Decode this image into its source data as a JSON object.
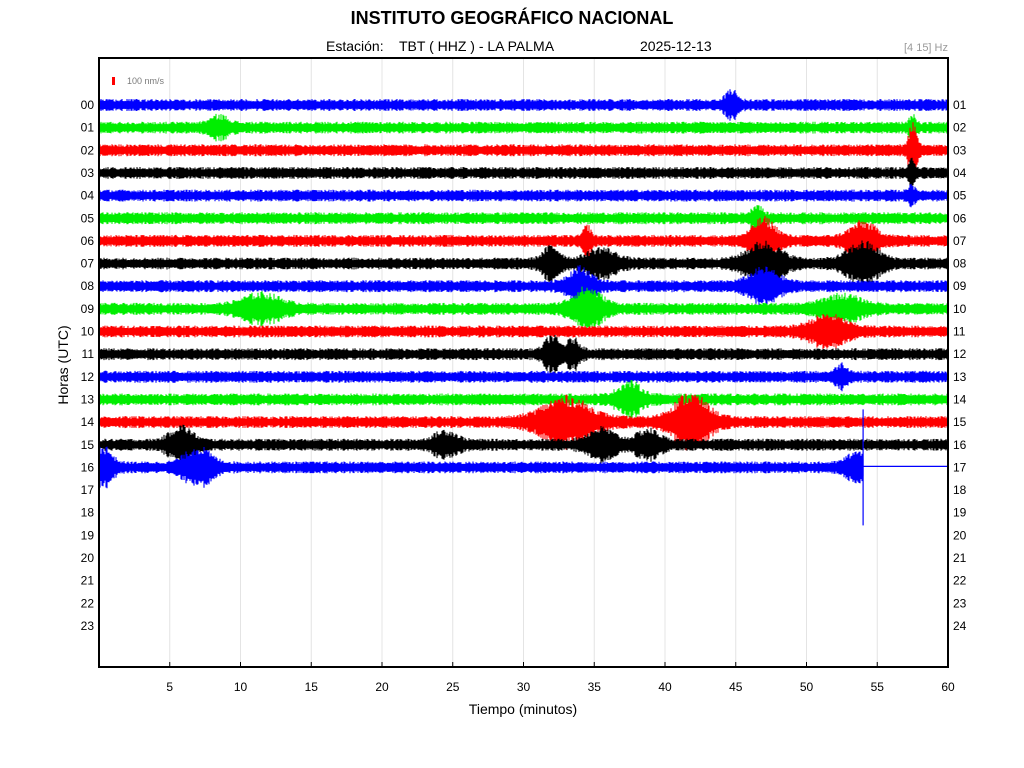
{
  "header": {
    "institution": "INSTITUTO GEOGRÁFICO NACIONAL",
    "station_label": "Estación:",
    "station": "TBT ( HHZ ) - LA PALMA",
    "date": "2025-12-13",
    "band": "[4 15] Hz"
  },
  "chart_data": {
    "type": "line",
    "title": "INSTITUTO GEOGRÁFICO NACIONAL",
    "xlabel": "Tiempo (minutos)",
    "ylabel": "Horas (UTC)",
    "xlim": [
      0,
      60
    ],
    "x_ticks": [
      5,
      10,
      15,
      20,
      25,
      30,
      35,
      40,
      45,
      50,
      55,
      60
    ],
    "left_hour_labels": [
      "00",
      "01",
      "02",
      "03",
      "04",
      "05",
      "06",
      "07",
      "08",
      "09",
      "10",
      "11",
      "12",
      "13",
      "14",
      "15",
      "16",
      "17",
      "18",
      "19",
      "20",
      "21",
      "22",
      "23"
    ],
    "right_hour_labels": [
      "01",
      "02",
      "03",
      "04",
      "05",
      "06",
      "07",
      "08",
      "09",
      "10",
      "11",
      "12",
      "13",
      "14",
      "15",
      "16",
      "17",
      "18",
      "19",
      "20",
      "21",
      "22",
      "23",
      "24"
    ],
    "trace_colors": [
      "#0000ff",
      "#00ee00",
      "#ff0000",
      "#000000"
    ],
    "scale_bar": {
      "label": "100 nm/s",
      "color": "#ff0000"
    },
    "grid": "vertical",
    "series": [
      {
        "hour": 0,
        "end_minute": 60,
        "events": [
          [
            44.7,
            0.6,
            2.0
          ]
        ]
      },
      {
        "hour": 1,
        "end_minute": 60,
        "events": [
          [
            8.5,
            1.0,
            1.4
          ],
          [
            57.5,
            0.3,
            1.8
          ]
        ]
      },
      {
        "hour": 2,
        "end_minute": 60,
        "events": [
          [
            57.5,
            0.4,
            4.0
          ]
        ]
      },
      {
        "hour": 3,
        "end_minute": 60,
        "events": [
          [
            57.5,
            0.3,
            2.0
          ]
        ]
      },
      {
        "hour": 4,
        "end_minute": 60,
        "events": [
          [
            57.4,
            0.3,
            1.5
          ]
        ]
      },
      {
        "hour": 5,
        "end_minute": 60,
        "events": [
          [
            46.5,
            0.5,
            1.8
          ]
        ]
      },
      {
        "hour": 6,
        "end_minute": 60,
        "events": [
          [
            47.0,
            1.2,
            3.2
          ],
          [
            54.0,
            1.4,
            2.6
          ],
          [
            34.5,
            0.4,
            2.0
          ]
        ]
      },
      {
        "hour": 7,
        "end_minute": 60,
        "events": [
          [
            32.0,
            0.9,
            2.4
          ],
          [
            35.5,
            1.5,
            2.0
          ],
          [
            47.0,
            1.8,
            3.0
          ],
          [
            54.0,
            1.6,
            3.0
          ]
        ]
      },
      {
        "hour": 8,
        "end_minute": 60,
        "events": [
          [
            34.0,
            1.2,
            2.6
          ],
          [
            47.0,
            1.5,
            2.4
          ]
        ]
      },
      {
        "hour": 9,
        "end_minute": 60,
        "events": [
          [
            11.5,
            2.0,
            2.0
          ],
          [
            34.5,
            1.5,
            3.0
          ],
          [
            52.5,
            2.0,
            1.8
          ]
        ]
      },
      {
        "hour": 10,
        "end_minute": 60,
        "events": [
          [
            51.5,
            1.8,
            2.2
          ]
        ]
      },
      {
        "hour": 11,
        "end_minute": 60,
        "events": [
          [
            32.0,
            0.7,
            2.6
          ],
          [
            33.5,
            0.7,
            2.0
          ]
        ]
      },
      {
        "hour": 12,
        "end_minute": 60,
        "events": [
          [
            52.5,
            0.6,
            1.6
          ]
        ]
      },
      {
        "hour": 13,
        "end_minute": 60,
        "events": [
          [
            37.5,
            1.2,
            2.4
          ]
        ]
      },
      {
        "hour": 14,
        "end_minute": 60,
        "events": [
          [
            33.0,
            2.5,
            3.6
          ],
          [
            41.8,
            1.8,
            4.2
          ]
        ]
      },
      {
        "hour": 15,
        "end_minute": 60,
        "events": [
          [
            5.8,
            1.2,
            2.6
          ],
          [
            24.5,
            1.2,
            1.8
          ],
          [
            35.5,
            1.4,
            2.2
          ],
          [
            38.8,
            1.2,
            2.0
          ]
        ]
      },
      {
        "hour": 16,
        "end_minute": 54,
        "events": [
          [
            0.3,
            0.9,
            3.0
          ],
          [
            7.0,
            1.4,
            2.8
          ],
          [
            53.5,
            1.0,
            2.0
          ]
        ]
      }
    ]
  }
}
